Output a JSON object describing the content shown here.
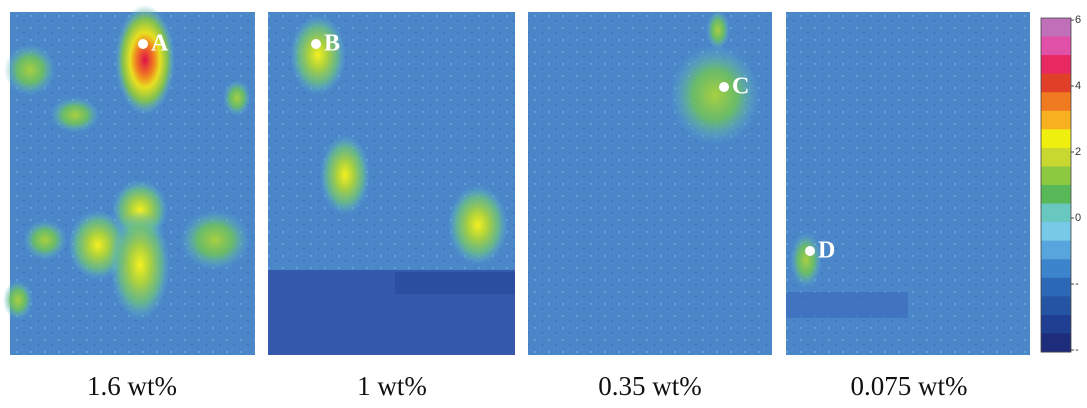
{
  "panels": [
    {
      "caption": "1.6 wt%",
      "point": "A"
    },
    {
      "caption": "1 wt%",
      "point": "B"
    },
    {
      "caption": "0.35 wt%",
      "point": "C"
    },
    {
      "caption": "0.075 wt%",
      "point": "D"
    }
  ],
  "colorbar": {
    "tick_labels": [
      "6",
      "4",
      "2",
      "0",
      "-",
      "-"
    ]
  }
}
